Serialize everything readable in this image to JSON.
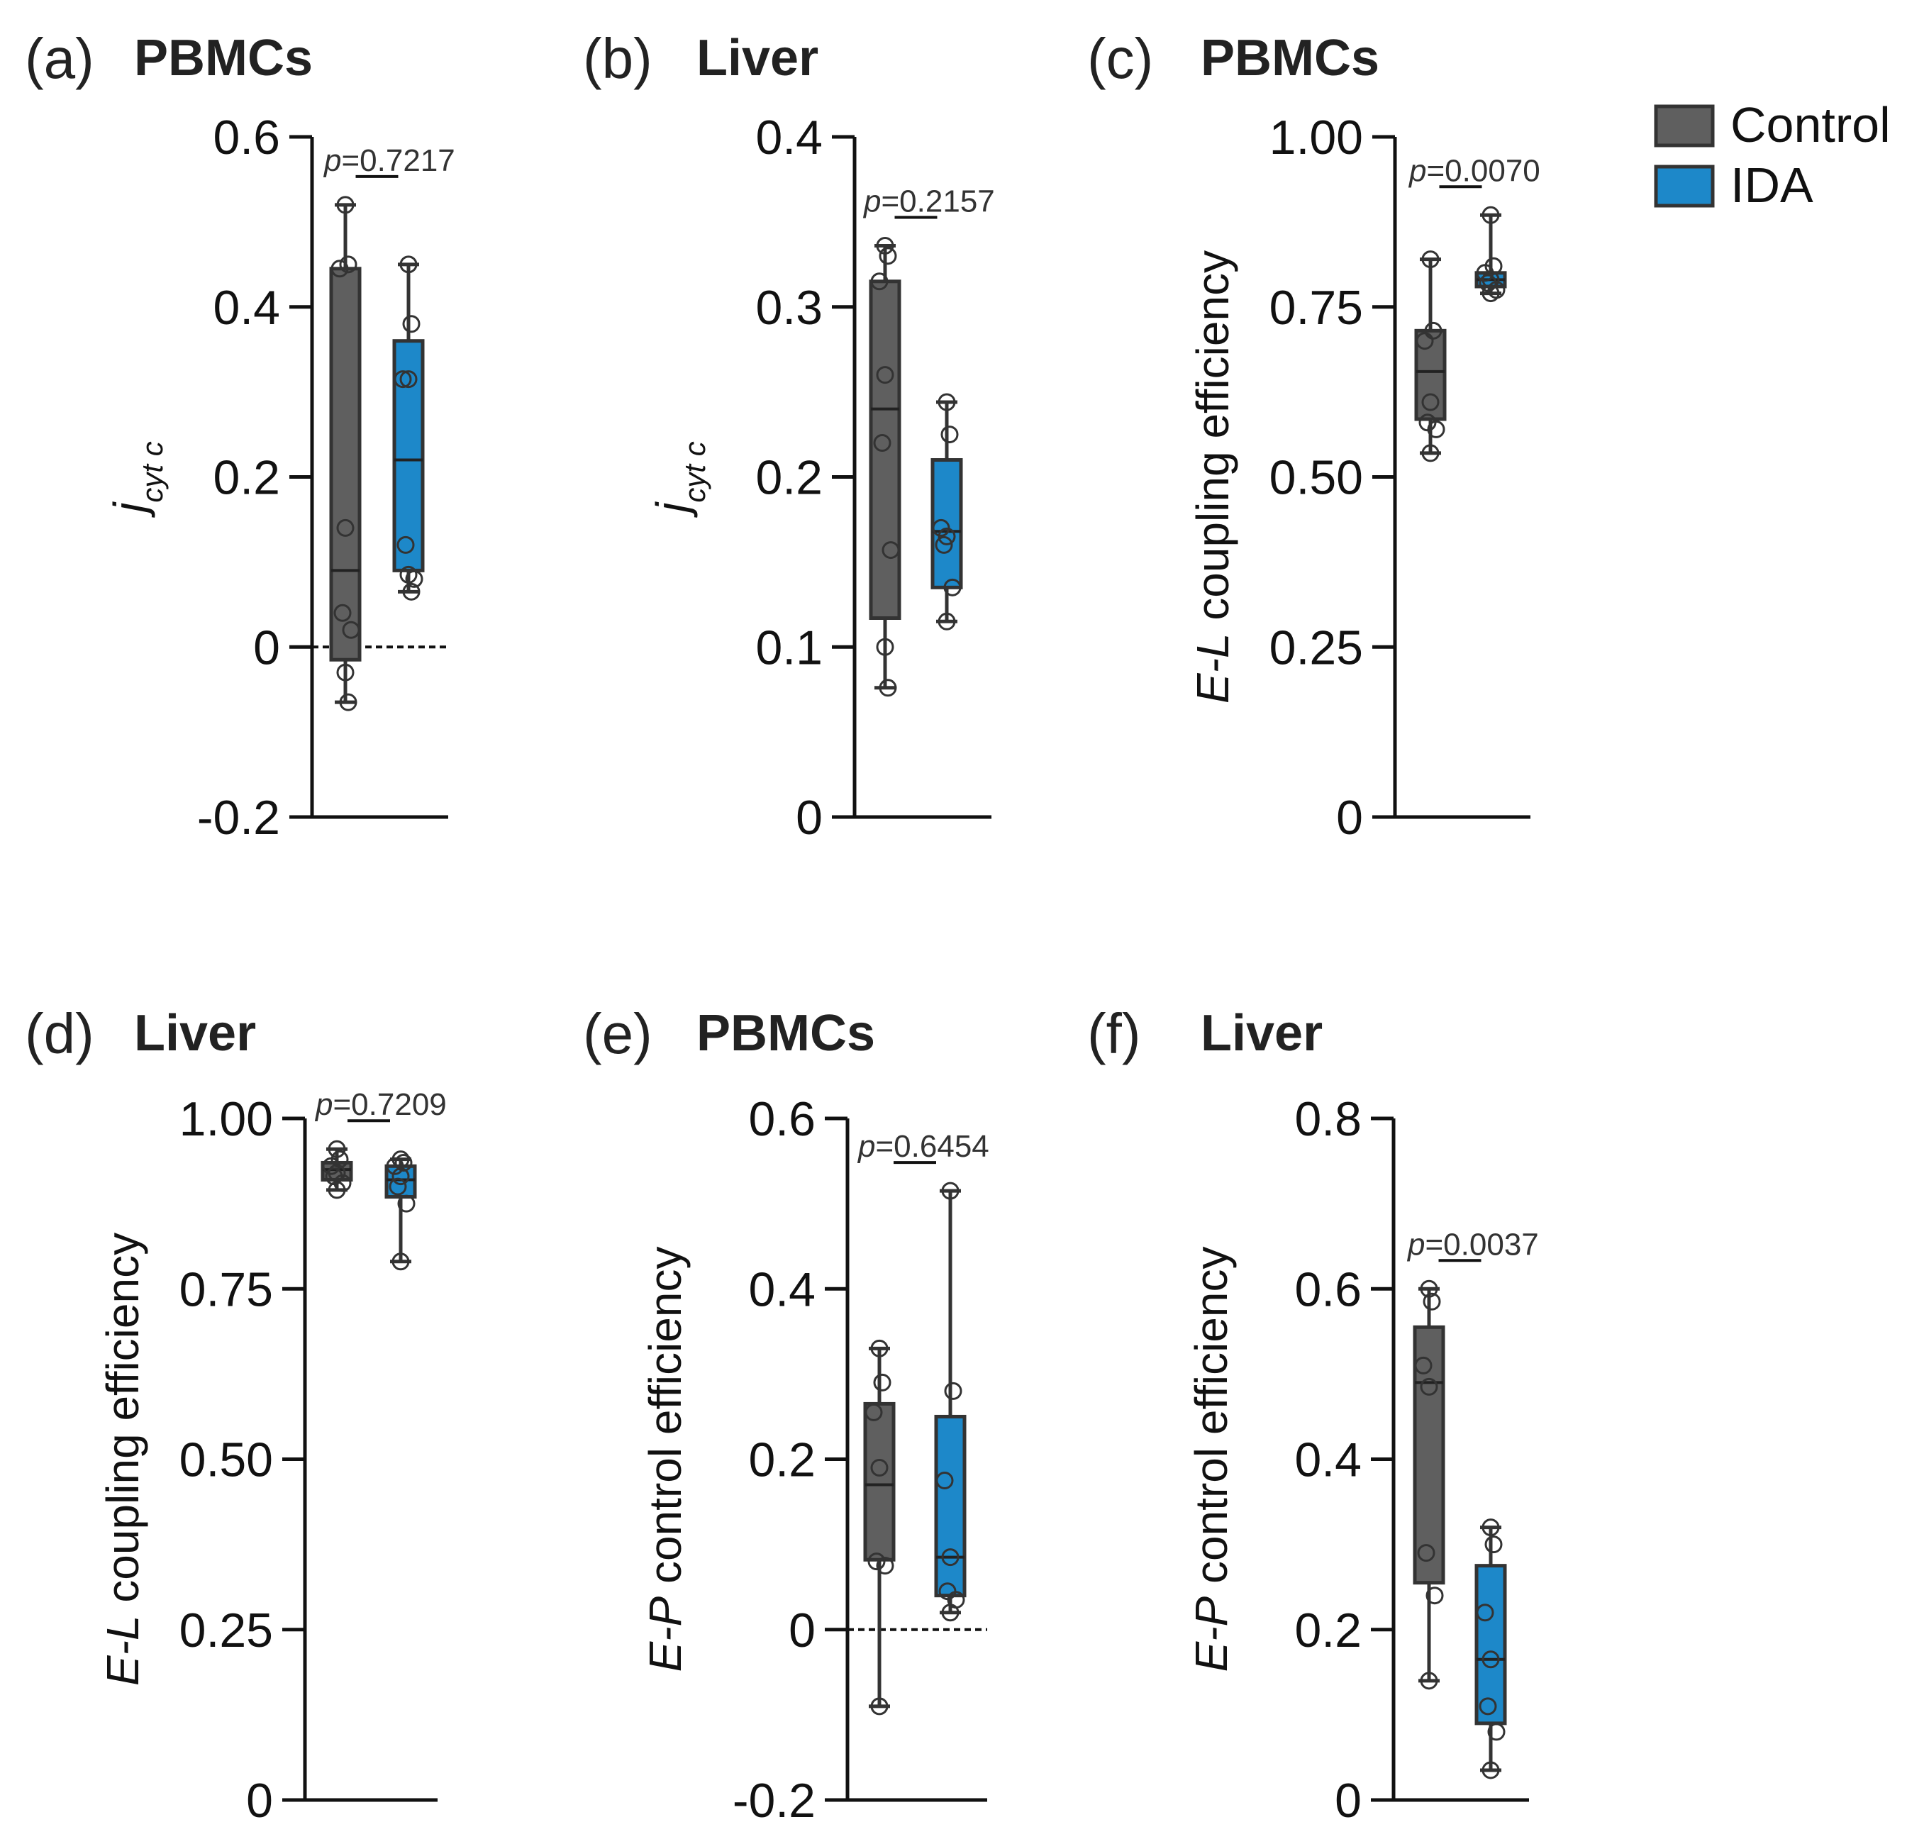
{
  "legend": {
    "items": [
      {
        "label": "Control",
        "color": "#5f5f5f"
      },
      {
        "label": "IDA",
        "color": "#1d88c9"
      }
    ]
  },
  "chart_data": [
    {
      "type": "box",
      "panel": "(a)",
      "title": "PBMCs",
      "ylabel_main": "j",
      "ylabel_sub": "cyt c",
      "ylim": [
        -0.2,
        0.6
      ],
      "yticks": [
        -0.2,
        0,
        0.2,
        0.4,
        0.6
      ],
      "ytick_labels": [
        "-0.2",
        "0",
        "0.2",
        "0.4",
        "0.6"
      ],
      "zero_line": true,
      "p_prefix": "p",
      "p_value": "=0.7217",
      "series": [
        {
          "name": "Control",
          "min": -0.065,
          "q1": -0.015,
          "median": 0.09,
          "q3": 0.445,
          "max": 0.52,
          "points": [
            0.52,
            0.45,
            0.445,
            0.14,
            0.04,
            0.02,
            -0.03,
            -0.065
          ]
        },
        {
          "name": "IDA",
          "min": 0.065,
          "q1": 0.09,
          "median": 0.22,
          "q3": 0.36,
          "max": 0.45,
          "points": [
            0.45,
            0.38,
            0.315,
            0.315,
            0.12,
            0.08,
            0.085,
            0.065
          ]
        }
      ]
    },
    {
      "type": "box",
      "panel": "(b)",
      "title": "Liver",
      "ylabel_main": "j",
      "ylabel_sub": "cyt c",
      "ylim": [
        0,
        0.4
      ],
      "yticks": [
        0,
        0.1,
        0.2,
        0.3,
        0.4
      ],
      "ytick_labels": [
        "0",
        "0.1",
        "0.2",
        "0.3",
        "0.4"
      ],
      "zero_line": false,
      "p_prefix": "p",
      "p_value": "=0.2157",
      "series": [
        {
          "name": "Control",
          "min": 0.076,
          "q1": 0.117,
          "median": 0.24,
          "q3": 0.315,
          "max": 0.336,
          "points": [
            0.336,
            0.33,
            0.315,
            0.26,
            0.22,
            0.157,
            0.1,
            0.076
          ]
        },
        {
          "name": "IDA",
          "min": 0.115,
          "q1": 0.135,
          "median": 0.168,
          "q3": 0.21,
          "max": 0.244,
          "points": [
            0.244,
            0.225,
            0.17,
            0.165,
            0.16,
            0.135,
            0.115
          ]
        }
      ]
    },
    {
      "type": "box",
      "panel": "(c)",
      "title": "PBMCs",
      "ylabel_main": "E-L",
      "ylabel_rest": " coupling efficiency",
      "ylim": [
        0,
        1.0
      ],
      "yticks": [
        0,
        0.25,
        0.5,
        0.75,
        1.0
      ],
      "ytick_labels": [
        "0",
        "0.25",
        "0.50",
        "0.75",
        "1.00"
      ],
      "zero_line": false,
      "p_prefix": "p",
      "p_value": "=0.0070",
      "series": [
        {
          "name": "Control",
          "min": 0.535,
          "q1": 0.585,
          "median": 0.655,
          "q3": 0.715,
          "max": 0.82,
          "points": [
            0.82,
            0.715,
            0.7,
            0.61,
            0.58,
            0.57,
            0.535
          ]
        },
        {
          "name": "IDA",
          "min": 0.77,
          "q1": 0.78,
          "median": 0.79,
          "q3": 0.8,
          "max": 0.885,
          "points": [
            0.885,
            0.81,
            0.8,
            0.79,
            0.785,
            0.775,
            0.77
          ]
        }
      ]
    },
    {
      "type": "box",
      "panel": "(d)",
      "title": "Liver",
      "ylabel_main": "E-L",
      "ylabel_rest": " coupling efficiency",
      "ylim": [
        0,
        1.0
      ],
      "yticks": [
        0,
        0.25,
        0.5,
        0.75,
        1.0
      ],
      "ytick_labels": [
        "0",
        "0.25",
        "0.50",
        "0.75",
        "1.00"
      ],
      "zero_line": false,
      "p_prefix": "p",
      "p_value": "=0.7209",
      "series": [
        {
          "name": "Control",
          "min": 0.895,
          "q1": 0.91,
          "median": 0.925,
          "q3": 0.935,
          "max": 0.955,
          "points": [
            0.955,
            0.94,
            0.93,
            0.92,
            0.915,
            0.905,
            0.895
          ]
        },
        {
          "name": "IDA",
          "min": 0.79,
          "q1": 0.885,
          "median": 0.91,
          "q3": 0.93,
          "max": 0.94,
          "points": [
            0.94,
            0.935,
            0.93,
            0.915,
            0.9,
            0.875,
            0.79
          ]
        }
      ]
    },
    {
      "type": "box",
      "panel": "(e)",
      "title": "PBMCs",
      "ylabel_main": "E-P",
      "ylabel_rest": " control efficiency",
      "ylim": [
        -0.2,
        0.6
      ],
      "yticks": [
        -0.2,
        0,
        0.2,
        0.4,
        0.6
      ],
      "ytick_labels": [
        "-0.2",
        "0",
        "0.2",
        "0.4",
        "0.6"
      ],
      "zero_line": true,
      "p_prefix": "p",
      "p_value": "=0.6454",
      "series": [
        {
          "name": "Control",
          "min": -0.09,
          "q1": 0.082,
          "median": 0.17,
          "q3": 0.265,
          "max": 0.33,
          "points": [
            0.33,
            0.29,
            0.255,
            0.19,
            0.08,
            0.075,
            -0.09
          ]
        },
        {
          "name": "IDA",
          "min": 0.02,
          "q1": 0.04,
          "median": 0.085,
          "q3": 0.25,
          "max": 0.515,
          "points": [
            0.515,
            0.28,
            0.175,
            0.085,
            0.045,
            0.035,
            0.02
          ]
        }
      ]
    },
    {
      "type": "box",
      "panel": "(f)",
      "title": "Liver",
      "ylabel_main": "E-P",
      "ylabel_rest": " control efficiency",
      "ylim": [
        0,
        0.8
      ],
      "yticks": [
        0,
        0.2,
        0.4,
        0.6,
        0.8
      ],
      "ytick_labels": [
        "0",
        "0.2",
        "0.4",
        "0.6",
        "0.8"
      ],
      "zero_line": false,
      "p_prefix": "p",
      "p_value": "=0.0037",
      "series": [
        {
          "name": "Control",
          "min": 0.14,
          "q1": 0.255,
          "median": 0.49,
          "q3": 0.555,
          "max": 0.6,
          "points": [
            0.6,
            0.585,
            0.51,
            0.485,
            0.29,
            0.24,
            0.14
          ]
        },
        {
          "name": "IDA",
          "min": 0.035,
          "q1": 0.09,
          "median": 0.165,
          "q3": 0.275,
          "max": 0.32,
          "points": [
            0.32,
            0.3,
            0.22,
            0.165,
            0.11,
            0.08,
            0.035
          ]
        }
      ]
    }
  ]
}
